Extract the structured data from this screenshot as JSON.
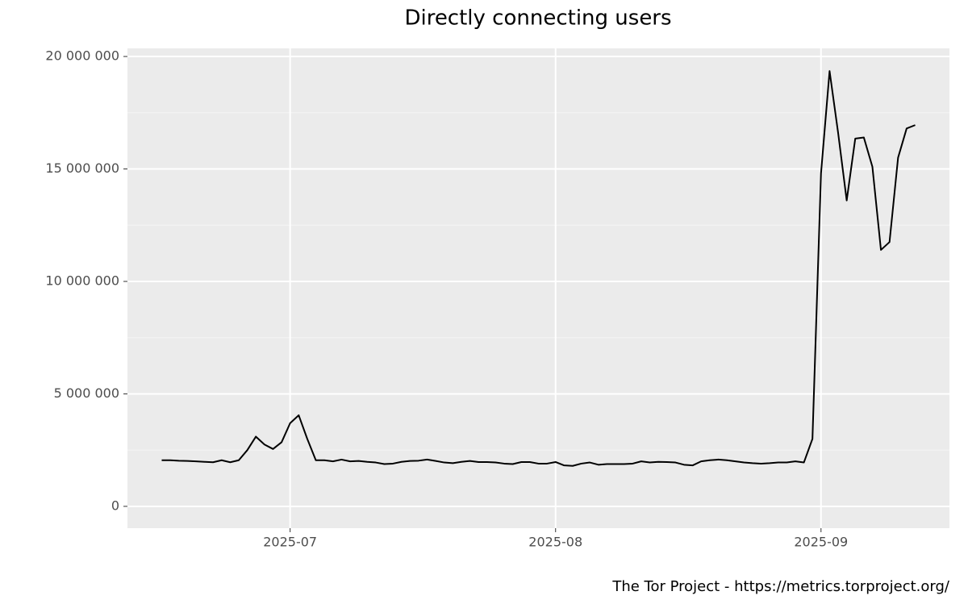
{
  "chart_data": {
    "type": "line",
    "title": "Directly connecting users",
    "caption": "The Tor Project - https://metrics.torproject.org/",
    "color": "#000000",
    "grid": true,
    "x": [
      "2025-06-16",
      "2025-06-17",
      "2025-06-18",
      "2025-06-19",
      "2025-06-20",
      "2025-06-21",
      "2025-06-22",
      "2025-06-23",
      "2025-06-24",
      "2025-06-25",
      "2025-06-26",
      "2025-06-27",
      "2025-06-28",
      "2025-06-29",
      "2025-06-30",
      "2025-07-01",
      "2025-07-02",
      "2025-07-03",
      "2025-07-04",
      "2025-07-05",
      "2025-07-06",
      "2025-07-07",
      "2025-07-08",
      "2025-07-09",
      "2025-07-10",
      "2025-07-11",
      "2025-07-12",
      "2025-07-13",
      "2025-07-14",
      "2025-07-15",
      "2025-07-16",
      "2025-07-17",
      "2025-07-18",
      "2025-07-19",
      "2025-07-20",
      "2025-07-21",
      "2025-07-22",
      "2025-07-23",
      "2025-07-24",
      "2025-07-25",
      "2025-07-26",
      "2025-07-27",
      "2025-07-28",
      "2025-07-29",
      "2025-07-30",
      "2025-07-31",
      "2025-08-01",
      "2025-08-02",
      "2025-08-03",
      "2025-08-04",
      "2025-08-05",
      "2025-08-06",
      "2025-08-07",
      "2025-08-08",
      "2025-08-09",
      "2025-08-10",
      "2025-08-11",
      "2025-08-12",
      "2025-08-13",
      "2025-08-14",
      "2025-08-15",
      "2025-08-16",
      "2025-08-17",
      "2025-08-18",
      "2025-08-19",
      "2025-08-20",
      "2025-08-21",
      "2025-08-22",
      "2025-08-23",
      "2025-08-24",
      "2025-08-25",
      "2025-08-26",
      "2025-08-27",
      "2025-08-28",
      "2025-08-29",
      "2025-08-30",
      "2025-08-31",
      "2025-09-01",
      "2025-09-02",
      "2025-09-03",
      "2025-09-04",
      "2025-09-05",
      "2025-09-06",
      "2025-09-07",
      "2025-09-08",
      "2025-09-09",
      "2025-09-10",
      "2025-09-11",
      "2025-09-12"
    ],
    "values": [
      2050000,
      2050000,
      2030000,
      2020000,
      2000000,
      1980000,
      1960000,
      2050000,
      1960000,
      2050000,
      2500000,
      3100000,
      2750000,
      2550000,
      2850000,
      3700000,
      4050000,
      3000000,
      2050000,
      2050000,
      2000000,
      2080000,
      2000000,
      2020000,
      1980000,
      1950000,
      1880000,
      1900000,
      1980000,
      2020000,
      2030000,
      2080000,
      2020000,
      1950000,
      1920000,
      1980000,
      2020000,
      1970000,
      1970000,
      1950000,
      1900000,
      1880000,
      1970000,
      1970000,
      1900000,
      1900000,
      1970000,
      1820000,
      1800000,
      1900000,
      1950000,
      1850000,
      1880000,
      1880000,
      1880000,
      1900000,
      2000000,
      1950000,
      1980000,
      1970000,
      1950000,
      1850000,
      1820000,
      2000000,
      2050000,
      2080000,
      2050000,
      2000000,
      1950000,
      1920000,
      1900000,
      1920000,
      1950000,
      1950000,
      2000000,
      1950000,
      3000000,
      14800000,
      19350000,
      16600000,
      13600000,
      16350000,
      16400000,
      15100000,
      11400000,
      11750000,
      15500000,
      16800000,
      16950000
    ],
    "xlim": [
      "2025-06-12",
      "2025-09-16"
    ],
    "xticks": [
      {
        "value": "2025-07-01",
        "label": "2025-07"
      },
      {
        "value": "2025-08-01",
        "label": "2025-08"
      },
      {
        "value": "2025-09-01",
        "label": "2025-09"
      }
    ],
    "ylim": [
      -970000,
      20360000
    ],
    "yticks": [
      0,
      {
        "value": 5000000,
        "label": "5 000 000"
      },
      {
        "value": 10000000,
        "label": "10 000 000"
      },
      {
        "value": 15000000,
        "label": "15 000 000"
      },
      {
        "value": 20000000,
        "label": "20 000 000"
      }
    ]
  }
}
